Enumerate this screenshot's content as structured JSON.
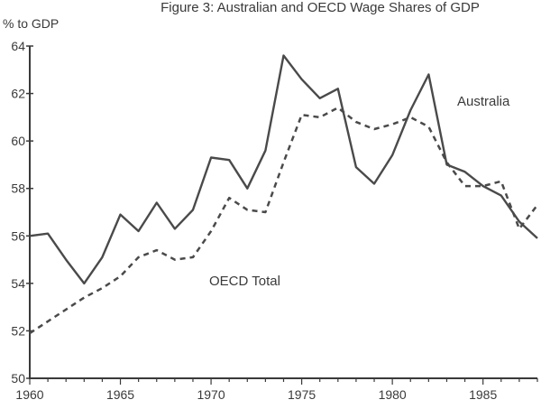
{
  "chart_data": {
    "type": "line",
    "title": "Figure 3: Australian and OECD Wage Shares of GDP",
    "ylabel": "% to GDP",
    "xlabel": "",
    "xlim": [
      1960,
      1988
    ],
    "ylim": [
      50,
      64
    ],
    "xticks": [
      1960,
      1965,
      1970,
      1975,
      1980,
      1985
    ],
    "yticks": [
      50,
      52,
      54,
      56,
      58,
      60,
      62,
      64
    ],
    "grid": false,
    "series": [
      {
        "name": "Australia",
        "style": "solid",
        "color": "#4a4a4a",
        "x": [
          1960,
          1961,
          1962,
          1963,
          1964,
          1965,
          1966,
          1967,
          1968,
          1969,
          1970,
          1971,
          1972,
          1973,
          1974,
          1975,
          1976,
          1977,
          1978,
          1979,
          1980,
          1981,
          1982,
          1983,
          1984,
          1985,
          1986,
          1987,
          1988
        ],
        "y": [
          56.0,
          56.1,
          55.0,
          54.0,
          55.1,
          56.9,
          56.2,
          57.4,
          56.3,
          57.1,
          59.3,
          59.2,
          58.0,
          59.6,
          63.6,
          62.6,
          61.8,
          62.2,
          58.9,
          58.2,
          59.4,
          61.3,
          62.8,
          59.0,
          58.7,
          58.1,
          57.7,
          56.6,
          55.9
        ]
      },
      {
        "name": "OECD Total",
        "style": "dashed",
        "color": "#4a4a4a",
        "x": [
          1960,
          1961,
          1962,
          1963,
          1964,
          1965,
          1966,
          1967,
          1968,
          1969,
          1970,
          1971,
          1972,
          1973,
          1974,
          1975,
          1976,
          1977,
          1978,
          1979,
          1980,
          1981,
          1982,
          1983,
          1984,
          1985,
          1986,
          1987,
          1988
        ],
        "y": [
          51.9,
          52.4,
          52.9,
          53.4,
          53.8,
          54.3,
          55.1,
          55.4,
          55.0,
          55.1,
          56.2,
          57.6,
          57.1,
          57.0,
          59.1,
          61.1,
          61.0,
          61.4,
          60.8,
          60.5,
          60.7,
          61.0,
          60.6,
          59.1,
          58.1,
          58.1,
          58.3,
          56.3,
          57.3
        ]
      }
    ]
  }
}
